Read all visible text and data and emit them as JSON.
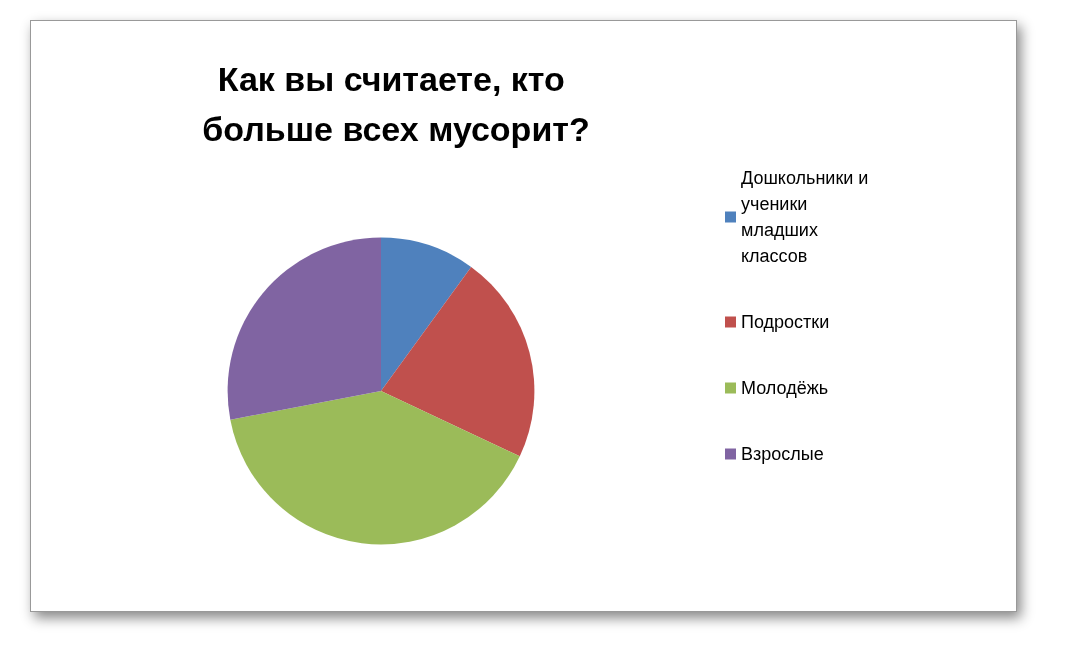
{
  "chart_data": {
    "type": "pie",
    "title": "Как вы считаете, кто больше всех мусорит?",
    "categories": [
      "Дошкольники и ученики младших классов",
      "Подростки",
      "Молодёжь",
      "Взрослые"
    ],
    "values": [
      10,
      22,
      40,
      28
    ],
    "colors": [
      "#4f81bd",
      "#c0504d",
      "#9bbb59",
      "#8064a2"
    ],
    "legend": "right"
  }
}
